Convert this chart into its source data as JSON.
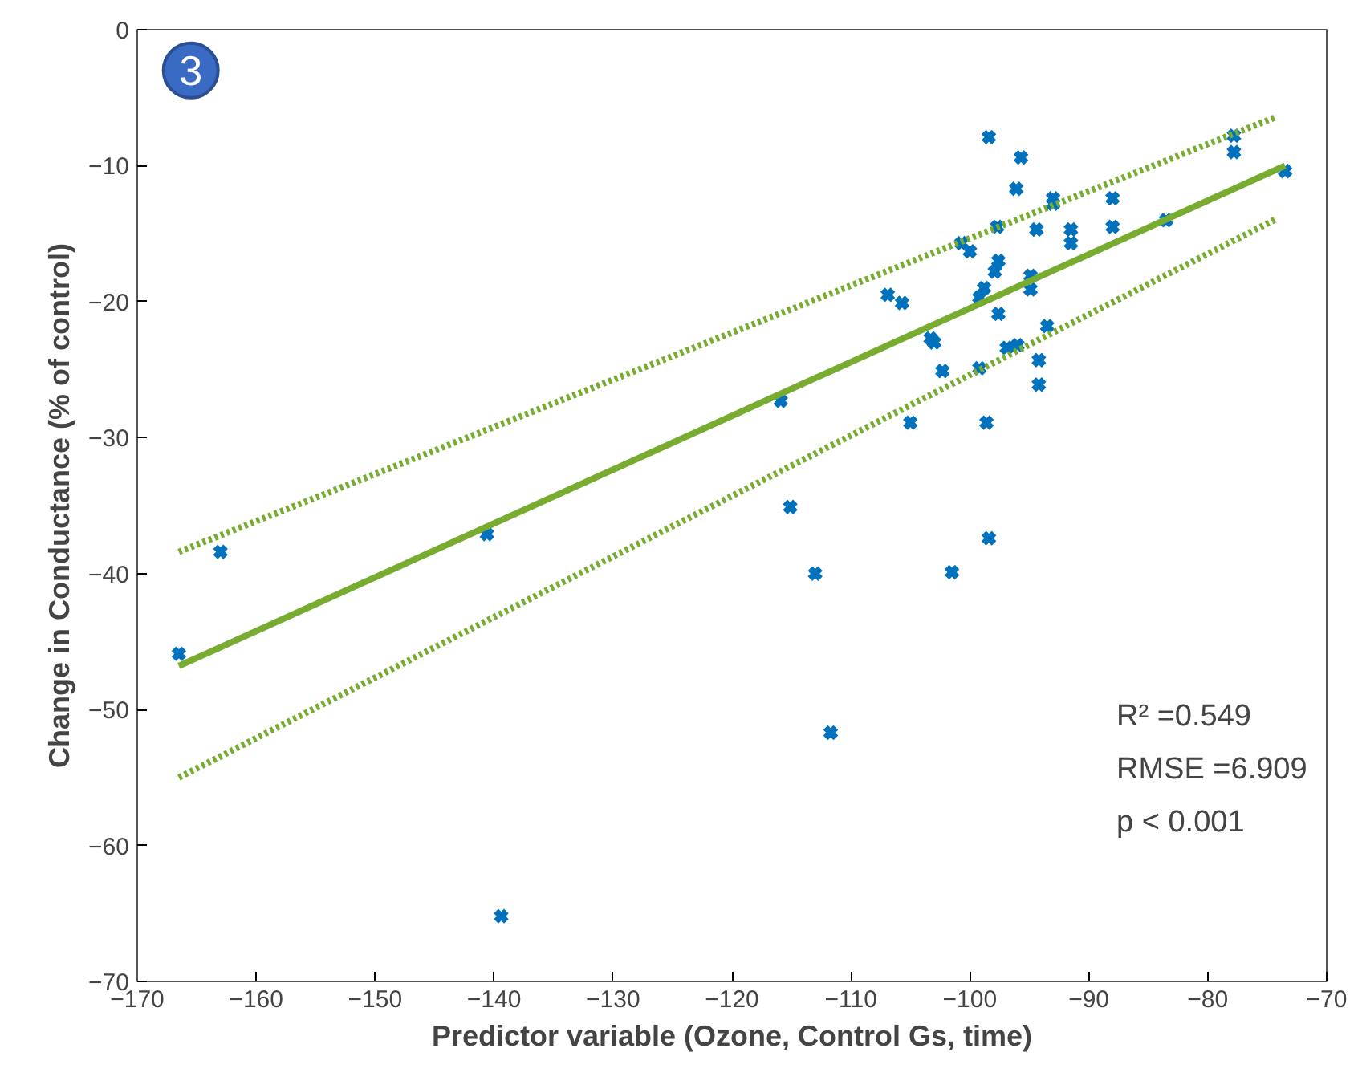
{
  "chart_data": {
    "type": "scatter",
    "xlabel": "Predictor variable (Ozone, Control Gs, time)",
    "ylabel": "Change in Conductance (% of control)",
    "annotations": [
      "3",
      "R² =0.549",
      "RMSE =6.909",
      "p < 0.001"
    ],
    "xlim": [
      -170,
      -70
    ],
    "ylim": [
      -70,
      0
    ],
    "xticks": [
      -170,
      -160,
      -150,
      -140,
      -130,
      -120,
      -110,
      -100,
      -90,
      -80,
      -70
    ],
    "yticks": [
      -70,
      -60,
      -50,
      -40,
      -30,
      -20,
      -10,
      0
    ],
    "grid": false,
    "series": [
      {
        "color": "#0072bd",
        "marker": "cross",
        "x": [
          -166.5,
          -163.0,
          -140.6,
          -139.4,
          -115.9,
          -115.1,
          -113.0,
          -111.7,
          -98.4,
          -95.7,
          -96.1,
          -93.0,
          -93.0,
          -88.0,
          -88.0,
          -83.5,
          -97.7,
          -94.4,
          -91.5,
          -91.5,
          -100.7,
          -100.0,
          -97.6,
          -97.9,
          -94.9,
          -94.9,
          -98.8,
          -99.2,
          -106.9,
          -105.7,
          -97.6,
          -93.5,
          -103.3,
          -103.0,
          -96.9,
          -96.0,
          -94.2,
          -102.3,
          -99.2,
          -94.2,
          -105.0,
          -98.6,
          -98.4,
          -101.5,
          -77.8,
          -77.8,
          -73.5
        ],
        "values": [
          -45.9,
          -38.4,
          -37.1,
          -65.2,
          -27.3,
          -35.1,
          -40.0,
          -51.7,
          -7.9,
          -9.4,
          -11.7,
          -12.4,
          -12.8,
          -12.4,
          -14.5,
          -14.0,
          -14.5,
          -14.7,
          -14.7,
          -15.7,
          -15.7,
          -16.3,
          -17.0,
          -17.8,
          -18.1,
          -19.1,
          -19.0,
          -19.7,
          -19.5,
          -20.1,
          -20.9,
          -21.8,
          -22.7,
          -23.0,
          -23.4,
          -23.2,
          -24.3,
          -25.1,
          -24.9,
          -26.1,
          -28.9,
          -28.9,
          -37.4,
          -39.9,
          -7.8,
          -9.0,
          -10.4
        ]
      },
      {
        "type": "line",
        "color": "#77ac30",
        "line_style": "solid",
        "marker": "none",
        "x": [
          -166.5,
          -73.5
        ],
        "values": [
          -46.8,
          -10.0
        ]
      },
      {
        "type": "line",
        "color": "#77ac30",
        "line_style": "dotted",
        "marker": "none",
        "x": [
          -166.5,
          -74.2
        ],
        "values": [
          -38.4,
          -6.4
        ]
      },
      {
        "type": "line",
        "color": "#77ac30",
        "line_style": "dotted",
        "marker": "none",
        "x": [
          -166.5,
          -74.2
        ],
        "values": [
          -55.0,
          -13.9
        ]
      }
    ]
  }
}
